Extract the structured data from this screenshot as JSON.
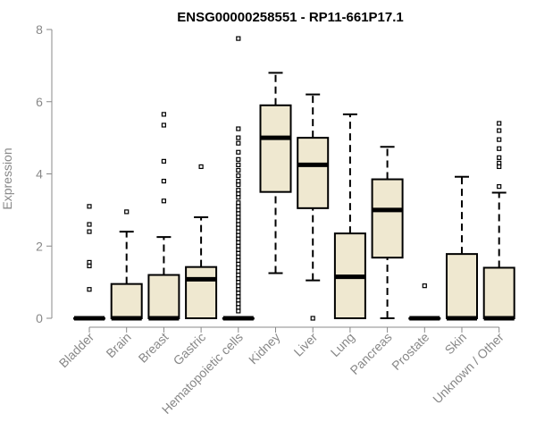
{
  "chart_data": {
    "type": "boxplot",
    "title": "ENSG00000258551 - RP11-661P17.1",
    "xlabel": "",
    "ylabel": "Expression",
    "ylim": [
      0,
      8
    ],
    "yticks": [
      0,
      2,
      4,
      6,
      8
    ],
    "box_fill": "#efe8d0",
    "categories": [
      "Bladder",
      "Brain",
      "Breast",
      "Gastric",
      "Hematopoietic cells",
      "Kidney",
      "Liver",
      "Lung",
      "Pancreas",
      "Prostate",
      "Skin",
      "Unknown / Other"
    ],
    "boxes": [
      {
        "name": "Bladder",
        "q1": 0,
        "median": 0,
        "q3": 0,
        "whisker_low": 0,
        "whisker_high": 0,
        "outliers": [
          3.1,
          2.6,
          2.4,
          1.55,
          1.45,
          0.8
        ]
      },
      {
        "name": "Brain",
        "q1": 0,
        "median": 0,
        "q3": 0.95,
        "whisker_low": 0,
        "whisker_high": 2.4,
        "outliers": [
          2.95
        ]
      },
      {
        "name": "Breast",
        "q1": 0,
        "median": 0,
        "q3": 1.2,
        "whisker_low": 0,
        "whisker_high": 2.25,
        "outliers": [
          5.65,
          5.35,
          4.35,
          3.8,
          3.25
        ]
      },
      {
        "name": "Gastric",
        "q1": 0,
        "median": 1.08,
        "q3": 1.42,
        "whisker_low": 0,
        "whisker_high": 2.8,
        "outliers": [
          4.2
        ]
      },
      {
        "name": "Hematopoietic cells",
        "q1": 0,
        "median": 0,
        "q3": 0,
        "whisker_low": 0,
        "whisker_high": 0,
        "outliers": [
          7.75,
          5.25,
          5.0,
          4.85,
          4.6,
          4.4,
          4.25,
          4.1,
          3.95,
          3.8,
          3.7,
          3.55,
          3.45,
          3.35,
          3.2,
          3.1,
          3.0,
          2.9,
          2.8,
          2.7,
          2.6,
          2.5,
          2.4,
          2.3,
          2.2,
          2.1,
          2.0,
          1.9,
          1.8,
          1.7,
          1.6,
          1.5,
          1.4,
          1.3,
          1.2,
          1.1,
          1.0,
          0.9,
          0.8,
          0.7,
          0.6,
          0.5,
          0.4,
          0.3,
          0.2
        ]
      },
      {
        "name": "Kidney",
        "q1": 3.5,
        "median": 5.0,
        "q3": 5.9,
        "whisker_low": 1.25,
        "whisker_high": 6.8,
        "outliers": []
      },
      {
        "name": "Liver",
        "q1": 3.05,
        "median": 4.25,
        "q3": 5.0,
        "whisker_low": 1.05,
        "whisker_high": 6.2,
        "outliers": [
          0
        ]
      },
      {
        "name": "Lung",
        "q1": 0,
        "median": 1.15,
        "q3": 2.35,
        "whisker_low": 0,
        "whisker_high": 5.65,
        "outliers": []
      },
      {
        "name": "Pancreas",
        "q1": 1.68,
        "median": 3.0,
        "q3": 3.85,
        "whisker_low": 0,
        "whisker_high": 4.75,
        "outliers": []
      },
      {
        "name": "Prostate",
        "q1": 0,
        "median": 0,
        "q3": 0,
        "whisker_low": 0,
        "whisker_high": 0,
        "outliers": [
          0.9
        ]
      },
      {
        "name": "Skin",
        "q1": 0,
        "median": 0,
        "q3": 1.78,
        "whisker_low": 0,
        "whisker_high": 3.92,
        "outliers": []
      },
      {
        "name": "Unknown / Other",
        "q1": 0,
        "median": 0,
        "q3": 1.4,
        "whisker_low": 0,
        "whisker_high": 3.48,
        "outliers": [
          5.4,
          5.2,
          4.95,
          4.7,
          4.45,
          4.3,
          4.2,
          3.65
        ]
      }
    ]
  }
}
